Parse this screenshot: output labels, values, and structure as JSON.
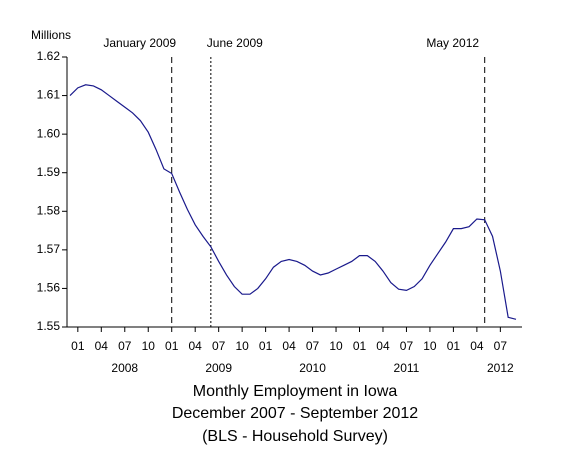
{
  "chart_data": {
    "type": "line",
    "title": "Monthly Employment in Iowa",
    "subtitle": "December 2007 - September 2012",
    "note": "(BLS - Household Survey)",
    "y_label": "Millions",
    "x": [
      "2007-12",
      "2008-01",
      "2008-02",
      "2008-03",
      "2008-04",
      "2008-05",
      "2008-06",
      "2008-07",
      "2008-08",
      "2008-09",
      "2008-10",
      "2008-11",
      "2008-12",
      "2009-01",
      "2009-02",
      "2009-03",
      "2009-04",
      "2009-05",
      "2009-06",
      "2009-07",
      "2009-08",
      "2009-09",
      "2009-10",
      "2009-11",
      "2009-12",
      "2010-01",
      "2010-02",
      "2010-03",
      "2010-04",
      "2010-05",
      "2010-06",
      "2010-07",
      "2010-08",
      "2010-09",
      "2010-10",
      "2010-11",
      "2010-12",
      "2011-01",
      "2011-02",
      "2011-03",
      "2011-04",
      "2011-05",
      "2011-06",
      "2011-07",
      "2011-08",
      "2011-09",
      "2011-10",
      "2011-11",
      "2011-12",
      "2012-01",
      "2012-02",
      "2012-03",
      "2012-04",
      "2012-05",
      "2012-06",
      "2012-07",
      "2012-08",
      "2012-09"
    ],
    "series": [
      {
        "name": "Employment",
        "color": "#1a1a8c",
        "values": [
          1.61,
          1.612,
          1.6128,
          1.6125,
          1.6115,
          1.61,
          1.6085,
          1.607,
          1.6055,
          1.6035,
          1.6005,
          1.596,
          1.591,
          1.5898,
          1.585,
          1.5805,
          1.5765,
          1.5735,
          1.5708,
          1.567,
          1.5635,
          1.5605,
          1.5585,
          1.5585,
          1.56,
          1.5625,
          1.5655,
          1.567,
          1.5675,
          1.567,
          1.566,
          1.5645,
          1.5635,
          1.564,
          1.565,
          1.566,
          1.567,
          1.5685,
          1.5685,
          1.567,
          1.5645,
          1.5615,
          1.5598,
          1.5595,
          1.5605,
          1.5625,
          1.566,
          1.569,
          1.572,
          1.5755,
          1.5755,
          1.576,
          1.578,
          1.5778,
          1.5735,
          1.5645,
          1.5525,
          1.552
        ]
      }
    ],
    "xlim": [
      "2007-12",
      "2012-09"
    ],
    "ylim": [
      1.55,
      1.62
    ],
    "yticks": [
      1.55,
      1.56,
      1.57,
      1.58,
      1.59,
      {
        "value": 1.6,
        "label": "1.60"
      },
      1.61,
      1.62
    ],
    "xticks": [
      {
        "value": "2008-01",
        "label": "01"
      },
      {
        "value": "2008-04",
        "label": "04"
      },
      {
        "value": "2008-07",
        "label": "07"
      },
      {
        "value": "2008-10",
        "label": "10"
      },
      {
        "value": "2009-01",
        "label": "01"
      },
      {
        "value": "2009-04",
        "label": "04"
      },
      {
        "value": "2009-07",
        "label": "07"
      },
      {
        "value": "2009-10",
        "label": "10"
      },
      {
        "value": "2010-01",
        "label": "01"
      },
      {
        "value": "2010-04",
        "label": "04"
      },
      {
        "value": "2010-07",
        "label": "07"
      },
      {
        "value": "2010-10",
        "label": "10"
      },
      {
        "value": "2011-01",
        "label": "01"
      },
      {
        "value": "2011-04",
        "label": "04"
      },
      {
        "value": "2011-07",
        "label": "07"
      },
      {
        "value": "2011-10",
        "label": "10"
      },
      {
        "value": "2012-01",
        "label": "01"
      },
      {
        "value": "2012-04",
        "label": "04"
      },
      {
        "value": "2012-07",
        "label": "07"
      }
    ],
    "year_labels": [
      {
        "value": "2008-07",
        "label": "2008"
      },
      {
        "value": "2009-07",
        "label": "2009"
      },
      {
        "value": "2010-07",
        "label": "2010"
      },
      {
        "value": "2011-07",
        "label": "2011"
      },
      {
        "value": "2012-07",
        "label": "2012"
      }
    ],
    "annotations": [
      {
        "label": "January 2009",
        "x": "2009-01",
        "style": "dashed"
      },
      {
        "label": "June 2009",
        "x": "2009-06",
        "style": "dotted"
      },
      {
        "label": "May 2012",
        "x": "2012-05",
        "style": "dashed"
      }
    ]
  }
}
